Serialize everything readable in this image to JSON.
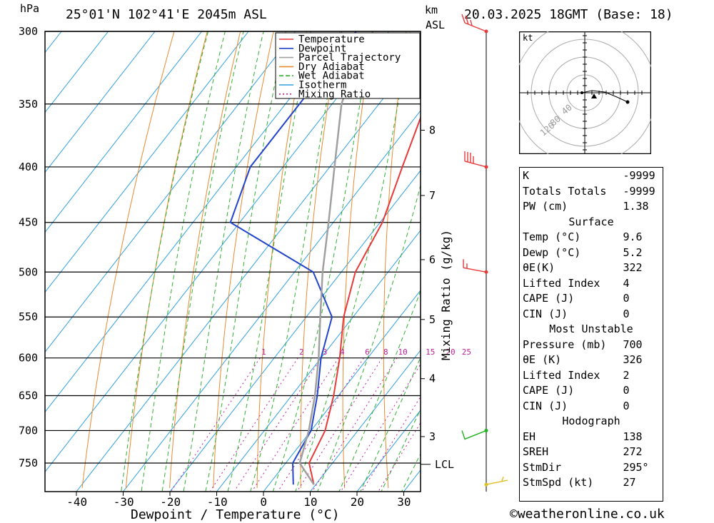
{
  "header": {
    "location": "25°01'N 102°41'E 2045m ASL",
    "datetime": "20.03.2025 18GMT (Base: 18)",
    "hpa_label": "hPa",
    "km_label": "km",
    "asl_label": "ASL",
    "mixing_ratio_label": "Mixing Ratio (g/kg)",
    "xaxis_label": "Dewpoint / Temperature (°C)",
    "lcl_label": "LCL",
    "kt_label": "kt",
    "footer": "©weatheronline.co.uk"
  },
  "chart_data": {
    "type": "skew-t",
    "pressure_levels": [
      300,
      350,
      400,
      450,
      500,
      550,
      600,
      650,
      700,
      750
    ],
    "temperature_ticks": [
      -40,
      -30,
      -20,
      -10,
      0,
      10,
      20,
      30
    ],
    "km_ticks": [
      {
        "label": "8",
        "p": 370
      },
      {
        "label": "7",
        "p": 425
      },
      {
        "label": "6",
        "p": 487
      },
      {
        "label": "5",
        "p": 553
      },
      {
        "label": "4",
        "p": 627
      },
      {
        "label": "3",
        "p": 709
      }
    ],
    "lcl_pressure": 752,
    "mixing_ratio_values": [
      "1",
      "2",
      "3",
      "4",
      "6",
      "8",
      "10",
      "15",
      "20",
      "25"
    ],
    "mixing_ratio_label_pressure": 592,
    "legend": [
      "Temperature",
      "Dewpoint",
      "Parcel Trajectory",
      "Dry Adiabat",
      "Wet Adiabat",
      "Isotherm",
      "Mixing Ratio"
    ],
    "colors": {
      "temperature": "#e83a3a",
      "dewpoint": "#2244cc",
      "parcel": "#a0a0a0",
      "dry_adiabat": "#e88a30",
      "wet_adiabat": "#30b030",
      "isotherm": "#30a0e0",
      "mixing_ratio": "#c020a0"
    },
    "series": [
      {
        "name": "Temperature",
        "points": [
          [
            300,
            -36
          ],
          [
            350,
            -30
          ],
          [
            400,
            -24.5
          ],
          [
            450,
            -19.5
          ],
          [
            500,
            -17
          ],
          [
            550,
            -12
          ],
          [
            600,
            -6
          ],
          [
            650,
            -1
          ],
          [
            700,
            3
          ],
          [
            750,
            5
          ],
          [
            785,
            9.6
          ]
        ]
      },
      {
        "name": "Dewpoint",
        "points": [
          [
            300,
            -57
          ],
          [
            350,
            -57
          ],
          [
            400,
            -57
          ],
          [
            450,
            -52
          ],
          [
            500,
            -26
          ],
          [
            550,
            -14.5
          ],
          [
            600,
            -10
          ],
          [
            650,
            -4.5
          ],
          [
            700,
            0
          ],
          [
            750,
            1.5
          ],
          [
            785,
            5.2
          ]
        ]
      },
      {
        "name": "Parcel Trajectory",
        "points": [
          [
            320,
            -52
          ],
          [
            350,
            -48
          ],
          [
            400,
            -39
          ],
          [
            450,
            -31
          ],
          [
            500,
            -24
          ],
          [
            550,
            -17
          ],
          [
            600,
            -10.5
          ],
          [
            650,
            -5
          ],
          [
            700,
            -0.5
          ],
          [
            750,
            3
          ],
          [
            785,
            9.6
          ]
        ]
      }
    ],
    "wind_barbs": [
      {
        "p": 300,
        "color": "#e83a3a"
      },
      {
        "p": 400,
        "color": "#e83a3a"
      },
      {
        "p": 500,
        "color": "#e83a3a"
      },
      {
        "p": 700,
        "color": "#20b020"
      },
      {
        "p": 785,
        "color": "#e0c020"
      }
    ],
    "hodograph_ring_labels": [
      "40",
      "80",
      "120"
    ]
  },
  "indices": {
    "rows": [
      {
        "label": "K",
        "value": "-9999"
      },
      {
        "label": "Totals Totals",
        "value": "-9999"
      },
      {
        "label": "PW (cm)",
        "value": "1.38"
      }
    ],
    "surface": {
      "title": "Surface",
      "rows": [
        {
          "label": "Temp (°C)",
          "value": "9.6"
        },
        {
          "label": "Dewp (°C)",
          "value": "5.2"
        },
        {
          "label": "θE(K)",
          "value": "322"
        },
        {
          "label": "Lifted Index",
          "value": "4"
        },
        {
          "label": "CAPE (J)",
          "value": "0"
        },
        {
          "label": "CIN (J)",
          "value": "0"
        }
      ]
    },
    "most_unstable": {
      "title": "Most Unstable",
      "rows": [
        {
          "label": "Pressure (mb)",
          "value": "700"
        },
        {
          "label": "θE (K)",
          "value": "326"
        },
        {
          "label": "Lifted Index",
          "value": "2"
        },
        {
          "label": "CAPE (J)",
          "value": "0"
        },
        {
          "label": "CIN (J)",
          "value": "0"
        }
      ]
    },
    "hodograph": {
      "title": "Hodograph",
      "rows": [
        {
          "label": "EH",
          "value": "138"
        },
        {
          "label": "SREH",
          "value": "272"
        },
        {
          "label": "StmDir",
          "value": "295°"
        },
        {
          "label": "StmSpd (kt)",
          "value": "27"
        }
      ]
    }
  }
}
